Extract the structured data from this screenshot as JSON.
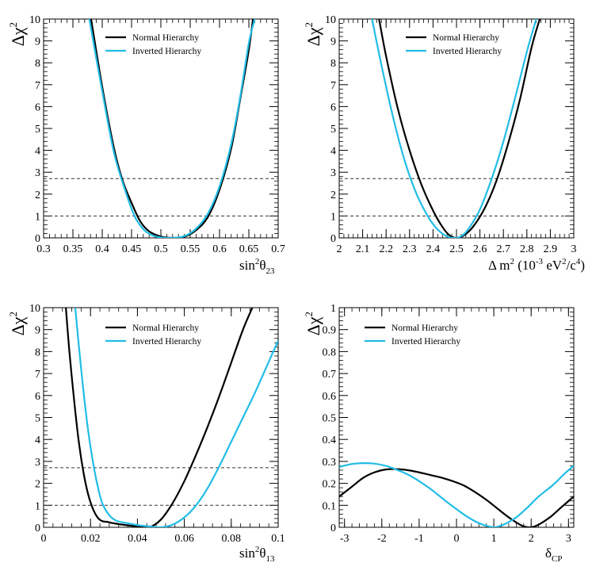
{
  "colors": {
    "normal": "#000000",
    "inverted": "#22bde6",
    "reference_line": "#333333"
  },
  "chart_data": [
    {
      "type": "line",
      "id": "sin2theta23",
      "xlabel_parts": [
        "sin",
        "2",
        "θ",
        "23"
      ],
      "xlabel_super_index": 1,
      "xlabel_sub_index": 3,
      "ylabel_parts": [
        "Δχ",
        "2"
      ],
      "xlim": [
        0.3,
        0.7
      ],
      "ylim": [
        0,
        10
      ],
      "xticks": [
        0.3,
        0.35,
        0.4,
        0.45,
        0.5,
        0.55,
        0.6,
        0.65,
        0.7
      ],
      "xtick_labels": [
        "0.3",
        "0.35",
        "0.4",
        "0.45",
        "0.5",
        "0.55",
        "0.6",
        "0.65",
        "0.7"
      ],
      "yticks": [
        0,
        1,
        2,
        3,
        4,
        5,
        6,
        7,
        8,
        9,
        10
      ],
      "ytick_labels": [
        "0",
        "1",
        "2",
        "3",
        "4",
        "5",
        "6",
        "7",
        "8",
        "9",
        "10"
      ],
      "reference_lines": [
        1,
        2.71
      ],
      "legend": [
        "Normal Hierarchy",
        "Inverted Hierarchy"
      ],
      "legend_placement": "top-left",
      "series": [
        {
          "name": "Normal Hierarchy",
          "color": "#000000",
          "x": [
            0.381,
            0.4,
            0.42,
            0.435,
            0.45,
            0.465,
            0.48,
            0.5,
            0.52,
            0.54,
            0.56,
            0.58,
            0.6,
            0.62,
            0.635,
            0.65,
            0.657
          ],
          "y": [
            10,
            6.9,
            4.1,
            2.6,
            1.6,
            0.75,
            0.3,
            0.06,
            0.0,
            0.05,
            0.35,
            0.95,
            2.2,
            4.1,
            6.3,
            8.6,
            10
          ]
        },
        {
          "name": "Inverted Hierarchy",
          "color": "#22bde6",
          "x": [
            0.378,
            0.4,
            0.42,
            0.44,
            0.455,
            0.47,
            0.485,
            0.5,
            0.52,
            0.54,
            0.56,
            0.58,
            0.6,
            0.62,
            0.635,
            0.65,
            0.66
          ],
          "y": [
            10,
            6.7,
            3.9,
            2.1,
            1.0,
            0.4,
            0.12,
            0.02,
            0.0,
            0.08,
            0.42,
            1.1,
            2.35,
            4.3,
            6.4,
            8.9,
            10
          ]
        }
      ]
    },
    {
      "type": "line",
      "id": "deltam2",
      "xlabel_parts": [
        "Δ m",
        "2",
        " (10",
        "-3",
        " eV",
        "2",
        "/c",
        "4",
        ")"
      ],
      "ylabel_parts": [
        "Δχ",
        "2"
      ],
      "xlim": [
        2,
        3
      ],
      "ylim": [
        0,
        10
      ],
      "xticks": [
        2,
        2.1,
        2.2,
        2.3,
        2.4,
        2.5,
        2.6,
        2.7,
        2.8,
        2.9,
        3
      ],
      "xtick_labels": [
        "2",
        "2.1",
        "2.2",
        "2.3",
        "2.4",
        "2.5",
        "2.6",
        "2.7",
        "2.8",
        "2.9",
        "3"
      ],
      "yticks": [
        0,
        1,
        2,
        3,
        4,
        5,
        6,
        7,
        8,
        9,
        10
      ],
      "ytick_labels": [
        "0",
        "1",
        "2",
        "3",
        "4",
        "5",
        "6",
        "7",
        "8",
        "9",
        "10"
      ],
      "reference_lines": [
        1,
        2.71
      ],
      "legend": [
        "Normal Hierarchy",
        "Inverted Hierarchy"
      ],
      "legend_placement": "top-center",
      "series": [
        {
          "name": "Normal Hierarchy",
          "color": "#000000",
          "x": [
            2.17,
            2.2,
            2.25,
            2.3,
            2.35,
            2.4,
            2.44,
            2.47,
            2.5,
            2.53,
            2.57,
            2.62,
            2.67,
            2.72,
            2.77,
            2.82,
            2.855
          ],
          "y": [
            10,
            8.3,
            5.9,
            4.0,
            2.45,
            1.25,
            0.5,
            0.12,
            0.0,
            0.1,
            0.5,
            1.35,
            2.6,
            4.3,
            6.3,
            8.7,
            10
          ]
        },
        {
          "name": "Inverted Hierarchy",
          "color": "#22bde6",
          "x": [
            2.14,
            2.18,
            2.23,
            2.28,
            2.33,
            2.38,
            2.42,
            2.46,
            2.5,
            2.53,
            2.56,
            2.6,
            2.65,
            2.7,
            2.75,
            2.8,
            2.84
          ],
          "y": [
            10,
            7.9,
            5.5,
            3.5,
            2.0,
            0.95,
            0.38,
            0.07,
            0.0,
            0.15,
            0.55,
            1.3,
            2.7,
            4.4,
            6.4,
            8.5,
            10
          ]
        }
      ]
    },
    {
      "type": "line",
      "id": "sin2theta13",
      "xlabel_parts": [
        "sin",
        "2",
        "θ",
        "13"
      ],
      "ylabel_parts": [
        "Δχ",
        "2"
      ],
      "xlim": [
        0,
        0.1
      ],
      "ylim": [
        0,
        10
      ],
      "xticks": [
        0,
        0.02,
        0.04,
        0.06,
        0.08,
        0.1
      ],
      "xtick_labels": [
        "0",
        "0.02",
        "0.04",
        "0.06",
        "0.08",
        "0.1"
      ],
      "yticks": [
        0,
        1,
        2,
        3,
        4,
        5,
        6,
        7,
        8,
        9,
        10
      ],
      "ytick_labels": [
        "0",
        "1",
        "2",
        "3",
        "4",
        "5",
        "6",
        "7",
        "8",
        "9",
        "10"
      ],
      "reference_lines": [
        1,
        2.71
      ],
      "legend": [
        "Normal Hierarchy",
        "Inverted Hierarchy"
      ],
      "legend_placement": "top-center",
      "series": [
        {
          "name": "Normal Hierarchy",
          "color": "#000000",
          "x": [
            0.0095,
            0.011,
            0.013,
            0.015,
            0.017,
            0.019,
            0.021,
            0.023,
            0.025,
            0.027,
            0.03,
            0.035,
            0.04,
            0.045,
            0.05,
            0.055,
            0.06,
            0.065,
            0.07,
            0.075,
            0.08,
            0.085,
            0.089
          ],
          "y": [
            10,
            8.0,
            5.8,
            3.9,
            2.5,
            1.5,
            0.85,
            0.45,
            0.28,
            0.25,
            0.18,
            0.1,
            0.04,
            0.0,
            0.35,
            1.1,
            2.1,
            3.3,
            4.6,
            6.0,
            7.5,
            9.0,
            10
          ]
        },
        {
          "name": "Inverted Hierarchy",
          "color": "#22bde6",
          "x": [
            0.0135,
            0.015,
            0.017,
            0.019,
            0.021,
            0.023,
            0.025,
            0.028,
            0.031,
            0.035,
            0.04,
            0.045,
            0.05,
            0.055,
            0.06,
            0.065,
            0.07,
            0.075,
            0.08,
            0.085,
            0.09,
            0.095,
            0.1
          ],
          "y": [
            10,
            8.3,
            6.2,
            4.4,
            3.0,
            1.9,
            1.1,
            0.55,
            0.3,
            0.2,
            0.1,
            0.04,
            0.0,
            0.12,
            0.45,
            1.0,
            1.8,
            2.8,
            3.9,
            5.0,
            6.1,
            7.3,
            8.5
          ]
        }
      ]
    },
    {
      "type": "line",
      "id": "deltacp",
      "xlabel_parts": [
        "δ",
        "CP"
      ],
      "ylabel_parts": [
        "Δχ",
        "2"
      ],
      "xlim": [
        -3.1416,
        3.1416
      ],
      "ylim": [
        0,
        1
      ],
      "xticks": [
        -3,
        -2,
        -1,
        0,
        1,
        2,
        3
      ],
      "xtick_labels": [
        "-3",
        "-2",
        "-1",
        "0",
        "1",
        "2",
        "3"
      ],
      "yticks": [
        0,
        0.1,
        0.2,
        0.3,
        0.4,
        0.5,
        0.6,
        0.7,
        0.8,
        0.9,
        1
      ],
      "ytick_labels": [
        "0",
        "0.1",
        "0.2",
        "0.3",
        "0.4",
        "0.5",
        "0.6",
        "0.7",
        "0.8",
        "0.9",
        "1"
      ],
      "reference_lines": [],
      "legend": [
        "Normal Hierarchy",
        "Inverted Hierarchy"
      ],
      "legend_placement": "top-left",
      "series": [
        {
          "name": "Normal Hierarchy",
          "color": "#000000",
          "x": [
            -3.1416,
            -2.8,
            -2.5,
            -2.2,
            -1.9,
            -1.6,
            -1.3,
            -1.0,
            -0.7,
            -0.4,
            -0.1,
            0.2,
            0.5,
            0.8,
            1.1,
            1.4,
            1.7,
            1.85,
            2.0,
            2.2,
            2.5,
            2.8,
            3.1416
          ],
          "y": [
            0.14,
            0.185,
            0.225,
            0.25,
            0.263,
            0.265,
            0.26,
            0.25,
            0.238,
            0.226,
            0.21,
            0.19,
            0.16,
            0.125,
            0.085,
            0.045,
            0.012,
            0.002,
            0.0,
            0.012,
            0.045,
            0.09,
            0.14
          ]
        },
        {
          "name": "Inverted Hierarchy",
          "color": "#22bde6",
          "x": [
            -3.1416,
            -2.8,
            -2.5,
            -2.2,
            -1.9,
            -1.6,
            -1.3,
            -1.0,
            -0.7,
            -0.4,
            -0.1,
            0.2,
            0.5,
            0.7,
            0.9,
            1.0,
            1.1,
            1.3,
            1.6,
            1.9,
            2.2,
            2.6,
            2.9,
            3.1416
          ],
          "y": [
            0.275,
            0.288,
            0.292,
            0.29,
            0.28,
            0.262,
            0.24,
            0.21,
            0.175,
            0.135,
            0.095,
            0.058,
            0.027,
            0.012,
            0.003,
            0.0,
            0.003,
            0.015,
            0.045,
            0.09,
            0.14,
            0.195,
            0.245,
            0.28
          ]
        }
      ]
    }
  ]
}
